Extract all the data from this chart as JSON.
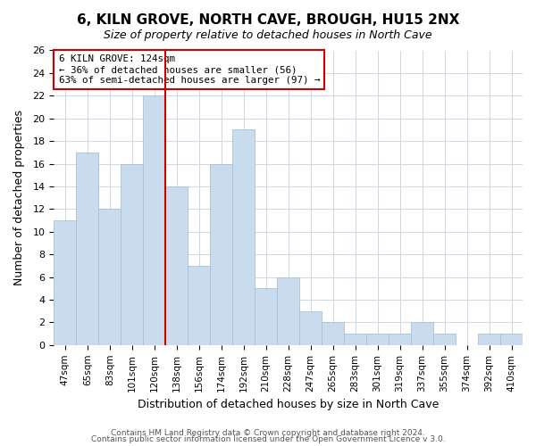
{
  "title": "6, KILN GROVE, NORTH CAVE, BROUGH, HU15 2NX",
  "subtitle": "Size of property relative to detached houses in North Cave",
  "xlabel": "Distribution of detached houses by size in North Cave",
  "ylabel": "Number of detached properties",
  "bar_color": "#c8dced",
  "bar_edge_color": "#aac0d8",
  "categories": [
    "47sqm",
    "65sqm",
    "83sqm",
    "101sqm",
    "120sqm",
    "138sqm",
    "156sqm",
    "174sqm",
    "192sqm",
    "210sqm",
    "228sqm",
    "247sqm",
    "265sqm",
    "283sqm",
    "301sqm",
    "319sqm",
    "337sqm",
    "355sqm",
    "374sqm",
    "392sqm",
    "410sqm"
  ],
  "values": [
    11,
    17,
    12,
    16,
    22,
    14,
    7,
    16,
    19,
    5,
    6,
    3,
    2,
    1,
    1,
    1,
    2,
    1,
    0,
    1,
    1
  ],
  "ylim": [
    0,
    26
  ],
  "yticks": [
    0,
    2,
    4,
    6,
    8,
    10,
    12,
    14,
    16,
    18,
    20,
    22,
    24,
    26
  ],
  "vline_color": "#cc0000",
  "annotation_title": "6 KILN GROVE: 124sqm",
  "annotation_line1": "← 36% of detached houses are smaller (56)",
  "annotation_line2": "63% of semi-detached houses are larger (97) →",
  "footer1": "Contains HM Land Registry data © Crown copyright and database right 2024.",
  "footer2": "Contains public sector information licensed under the Open Government Licence v 3.0.",
  "background_color": "#ffffff",
  "grid_color": "#cdd8e3"
}
